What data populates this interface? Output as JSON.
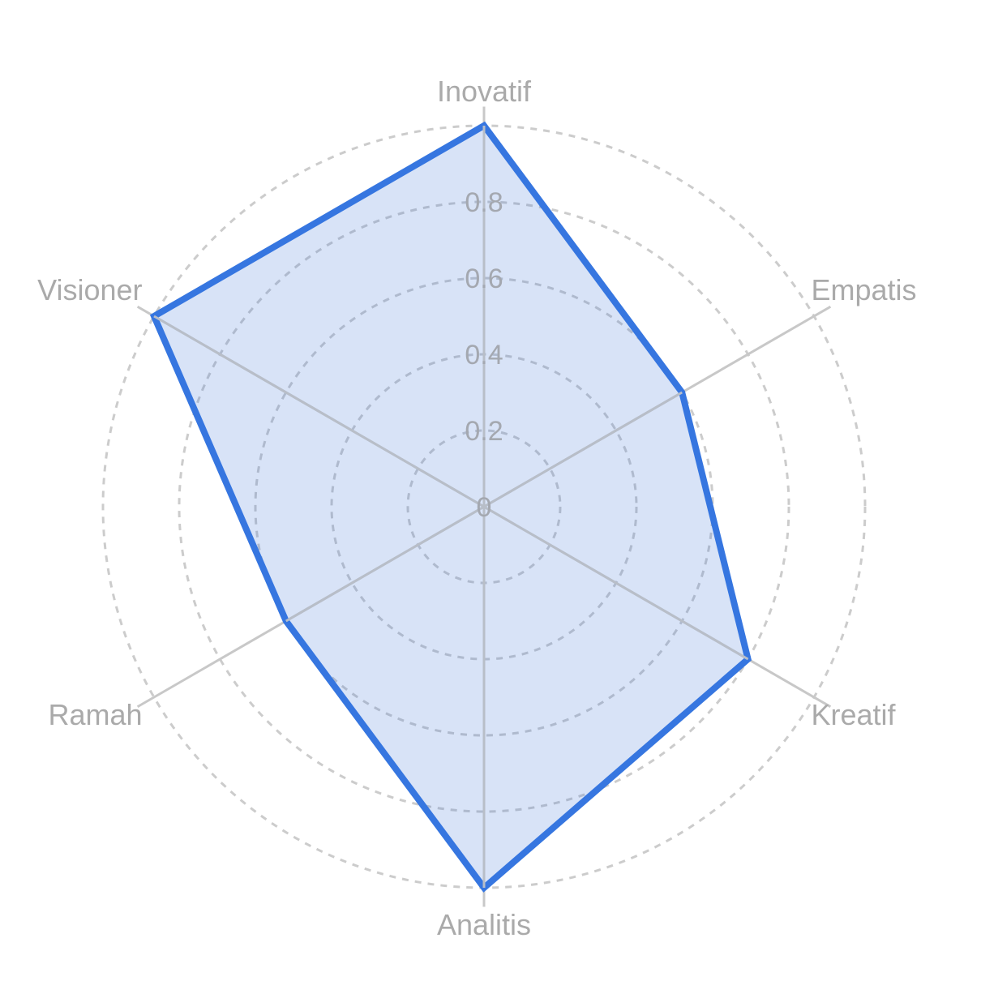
{
  "chart_data": {
    "type": "radar",
    "axes": [
      "Inovatif",
      "Empatis",
      "Kreatif",
      "Analitis",
      "Ramah",
      "Visioner"
    ],
    "values": [
      1.0,
      0.6,
      0.8,
      1.0,
      0.6,
      1.0
    ],
    "ticks": [
      "0",
      "0.2",
      "0.4",
      "0.6",
      "0.8"
    ],
    "rlim": [
      0,
      1
    ],
    "grid": true,
    "colors": {
      "line": "#3676e0",
      "fill": "#3b73d6",
      "grid": "#cccccc",
      "axis_label": "#aaaaaa",
      "tick_label": "#a4a8b0"
    }
  }
}
